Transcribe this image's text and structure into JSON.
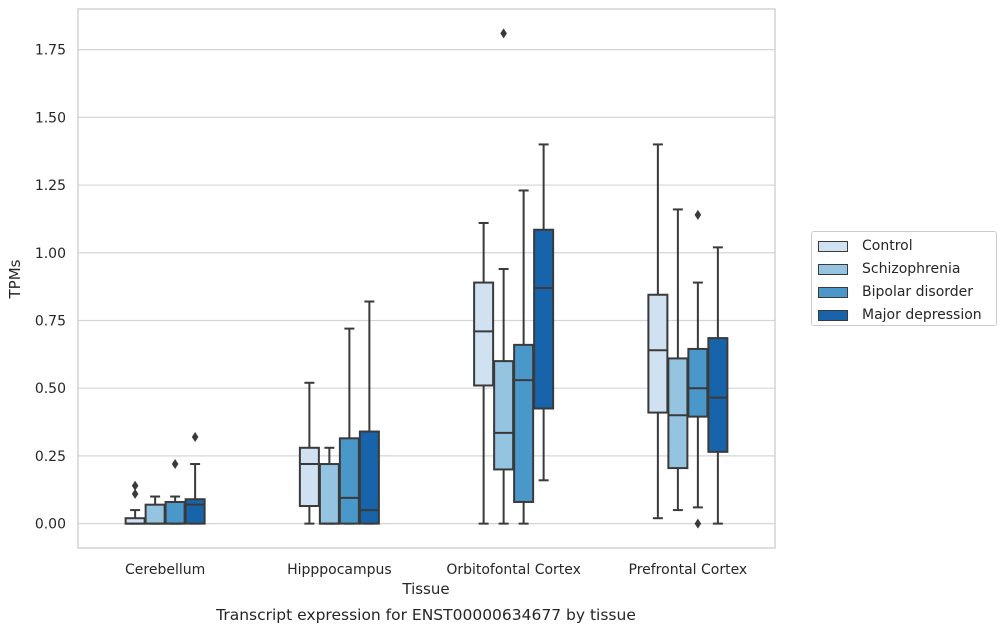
{
  "chart_data": {
    "type": "boxplot",
    "title": "",
    "caption": "Transcript expression for ENST00000634677 by tissue",
    "xlabel": "Tissue",
    "ylabel": "TPMs",
    "ylim": [
      -0.09,
      1.9
    ],
    "yticks": [
      "0.00",
      "0.25",
      "0.50",
      "0.75",
      "1.00",
      "1.25",
      "1.50",
      "1.75"
    ],
    "grid": "horizontal",
    "legend_position": "right",
    "categories": [
      "Cerebellum",
      "Hipppocampus",
      "Orbitofontal Cortex",
      "Prefrontal Cortex"
    ],
    "series": [
      {
        "name": "Control",
        "color": "#d0e1f2",
        "boxes": [
          {
            "whisker_low": 0.0,
            "q1": 0.0,
            "median": 0.0,
            "q3": 0.02,
            "whisker_high": 0.05,
            "outliers": [
              0.11,
              0.14
            ]
          },
          {
            "whisker_low": 0.0,
            "q1": 0.065,
            "median": 0.22,
            "q3": 0.28,
            "whisker_high": 0.52,
            "outliers": []
          },
          {
            "whisker_low": 0.0,
            "q1": 0.51,
            "median": 0.71,
            "q3": 0.89,
            "whisker_high": 1.11,
            "outliers": []
          },
          {
            "whisker_low": 0.02,
            "q1": 0.41,
            "median": 0.64,
            "q3": 0.845,
            "whisker_high": 1.4,
            "outliers": []
          }
        ]
      },
      {
        "name": "Schizophrenia",
        "color": "#94c4df",
        "boxes": [
          {
            "whisker_low": 0.0,
            "q1": 0.0,
            "median": 0.0,
            "q3": 0.07,
            "whisker_high": 0.1,
            "outliers": []
          },
          {
            "whisker_low": 0.0,
            "q1": 0.0,
            "median": 0.0,
            "q3": 0.22,
            "whisker_high": 0.28,
            "outliers": []
          },
          {
            "whisker_low": 0.0,
            "q1": 0.2,
            "median": 0.335,
            "q3": 0.6,
            "whisker_high": 0.94,
            "outliers": [
              1.81
            ]
          },
          {
            "whisker_low": 0.05,
            "q1": 0.205,
            "median": 0.4,
            "q3": 0.61,
            "whisker_high": 1.16,
            "outliers": []
          }
        ]
      },
      {
        "name": "Bipolar disorder",
        "color": "#4a98c9",
        "boxes": [
          {
            "whisker_low": 0.0,
            "q1": 0.0,
            "median": 0.0,
            "q3": 0.08,
            "whisker_high": 0.1,
            "outliers": [
              0.22
            ]
          },
          {
            "whisker_low": 0.0,
            "q1": 0.0,
            "median": 0.095,
            "q3": 0.315,
            "whisker_high": 0.72,
            "outliers": []
          },
          {
            "whisker_low": 0.0,
            "q1": 0.08,
            "median": 0.53,
            "q3": 0.66,
            "whisker_high": 1.23,
            "outliers": []
          },
          {
            "whisker_low": 0.06,
            "q1": 0.395,
            "median": 0.5,
            "q3": 0.645,
            "whisker_high": 0.89,
            "outliers": [
              1.14,
              0.0
            ]
          }
        ]
      },
      {
        "name": "Major depression",
        "color": "#1764ab",
        "boxes": [
          {
            "whisker_low": 0.0,
            "q1": 0.0,
            "median": 0.07,
            "q3": 0.09,
            "whisker_high": 0.22,
            "outliers": [
              0.32
            ]
          },
          {
            "whisker_low": 0.0,
            "q1": 0.0,
            "median": 0.05,
            "q3": 0.34,
            "whisker_high": 0.82,
            "outliers": []
          },
          {
            "whisker_low": 0.16,
            "q1": 0.425,
            "median": 0.87,
            "q3": 1.085,
            "whisker_high": 1.4,
            "outliers": []
          },
          {
            "whisker_low": 0.0,
            "q1": 0.265,
            "median": 0.465,
            "q3": 0.685,
            "whisker_high": 1.02,
            "outliers": []
          }
        ]
      }
    ]
  }
}
